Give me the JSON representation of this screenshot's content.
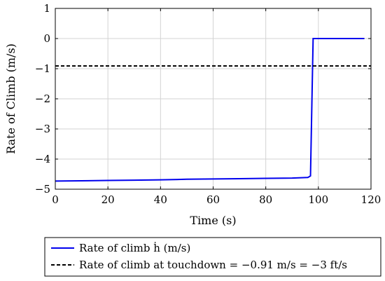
{
  "chart_data": {
    "type": "line",
    "title": "",
    "xlabel": "Time (s)",
    "ylabel": "Rate of Climb (m/s)",
    "xlim": [
      0,
      120
    ],
    "ylim": [
      -5,
      1
    ],
    "xticks": [
      0,
      20,
      40,
      60,
      80,
      100,
      120
    ],
    "yticks": [
      -5,
      -4,
      -3,
      -2,
      -1,
      0,
      1
    ],
    "xtick_labels": [
      "0",
      "20",
      "40",
      "60",
      "80",
      "100",
      "120"
    ],
    "ytick_labels": [
      "−5",
      "−4",
      "−3",
      "−2",
      "−1",
      "0",
      "1"
    ],
    "grid": true,
    "legend_position": "bottom",
    "series": [
      {
        "name": "Rate of climb ḣ (m/s)",
        "style": "solid",
        "color": "#0000ee",
        "x": [
          0,
          10,
          20,
          30,
          40,
          50,
          60,
          70,
          80,
          90,
          96,
          97,
          98,
          100,
          110,
          117.5
        ],
        "y": [
          -4.73,
          -4.72,
          -4.71,
          -4.7,
          -4.69,
          -4.67,
          -4.66,
          -4.65,
          -4.64,
          -4.63,
          -4.61,
          -4.56,
          0,
          0,
          0,
          0
        ]
      },
      {
        "name": "Rate of climb at touchdown = −0.91 m/s = −3 ft/s",
        "style": "dashed",
        "color": "#000000",
        "x": [
          0,
          120
        ],
        "y": [
          -0.91,
          -0.91
        ]
      }
    ]
  }
}
